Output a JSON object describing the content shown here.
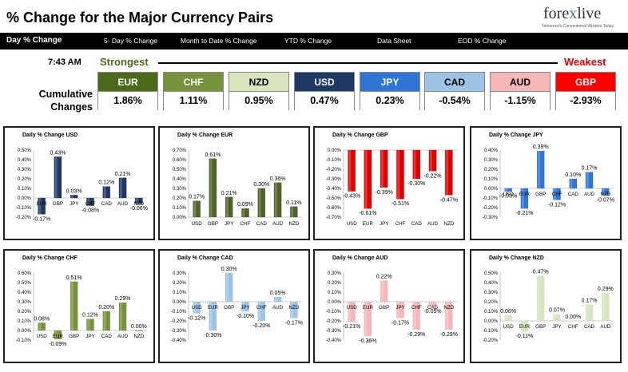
{
  "header": {
    "title": "% Change for the Major Currency Pairs",
    "logo_text_a": "fore",
    "logo_text_x": "x",
    "logo_text_b": "live",
    "logo_tagline": "Tomorrow's Conventional Wisdom Today"
  },
  "nav": {
    "items": [
      "Day % Change",
      "5- Day % Change",
      "Month to Date % Change",
      "YTD % Change",
      "Data Sheet",
      "EOD % Change"
    ]
  },
  "summary": {
    "time": "7:43 AM",
    "strongest_label": "Strongest",
    "weakest_label": "Weakest",
    "cumulative_label_1": "Cumulative",
    "cumulative_label_2": "Changes",
    "currencies": [
      {
        "code": "EUR",
        "value": "1.86%",
        "color": "#4a6a1a"
      },
      {
        "code": "CHF",
        "value": "1.11%",
        "color": "#76933c"
      },
      {
        "code": "NZD",
        "value": "0.95%",
        "color": "#d7e4bc"
      },
      {
        "code": "USD",
        "value": "0.47%",
        "color": "#1f3864"
      },
      {
        "code": "JPY",
        "value": "0.23%",
        "color": "#2e75d6"
      },
      {
        "code": "CAD",
        "value": "-0.54%",
        "color": "#9dc3e6"
      },
      {
        "code": "AUD",
        "value": "-1.15%",
        "color": "#f4b6b6"
      },
      {
        "code": "GBP",
        "value": "-2.93%",
        "color": "#ff0000"
      }
    ]
  },
  "chart_data": [
    {
      "type": "bar",
      "title": "Daily % Change USD",
      "categories": [
        "EUR",
        "GBP",
        "JPY",
        "CHF",
        "CAD",
        "AUD",
        "NZD"
      ],
      "values": [
        -0.17,
        0.43,
        0.03,
        -0.08,
        0.12,
        0.21,
        -0.06
      ],
      "ylim": [
        -0.2,
        0.5
      ],
      "yticks": [
        "-0.20%",
        "-0.10%",
        "0.00%",
        "0.10%",
        "0.20%",
        "0.30%",
        "0.40%",
        "0.50%"
      ],
      "color": "#1f3864"
    },
    {
      "type": "bar",
      "title": "Daily % Change EUR",
      "categories": [
        "USD",
        "GBP",
        "JPY",
        "CHF",
        "CAD",
        "AUD",
        "NZD"
      ],
      "values": [
        0.17,
        0.61,
        0.21,
        0.09,
        0.3,
        0.36,
        0.11
      ],
      "ylim": [
        0,
        0.7
      ],
      "yticks": [
        "0.00%",
        "0.10%",
        "0.20%",
        "0.30%",
        "0.40%",
        "0.50%",
        "0.60%",
        "0.70%"
      ],
      "color": "#4f6228"
    },
    {
      "type": "bar",
      "title": "Daily % Change GBP",
      "categories": [
        "USD",
        "EUR",
        "JPY",
        "CHF",
        "CAD",
        "AUD",
        "NZD"
      ],
      "values": [
        -0.43,
        -0.61,
        -0.39,
        -0.51,
        -0.3,
        -0.22,
        -0.47
      ],
      "ylim": [
        -0.7,
        0
      ],
      "yticks": [
        "-0.70%",
        "-0.60%",
        "-0.50%",
        "-0.40%",
        "-0.30%",
        "-0.20%",
        "-0.10%",
        "0.00%"
      ],
      "color": "#e00000"
    },
    {
      "type": "bar",
      "title": "Daily % Change JPY",
      "categories": [
        "USD",
        "EUR",
        "GBP",
        "CHF",
        "CAD",
        "AUD",
        "NZD"
      ],
      "values": [
        -0.03,
        -0.21,
        0.39,
        -0.12,
        0.1,
        0.17,
        -0.07
      ],
      "ylim": [
        -0.3,
        0.4
      ],
      "yticks": [
        "-0.30%",
        "-0.20%",
        "-0.10%",
        "0.00%",
        "0.10%",
        "0.20%",
        "0.30%",
        "0.40%"
      ],
      "color": "#2e75d6"
    },
    {
      "type": "bar",
      "title": "Daily % Change CHF",
      "categories": [
        "USD",
        "EUR",
        "GBP",
        "JPY",
        "CAD",
        "AUD",
        "NZD"
      ],
      "values": [
        0.08,
        -0.09,
        0.51,
        0.12,
        0.2,
        0.29,
        0.0
      ],
      "ylim": [
        -0.1,
        0.6
      ],
      "yticks": [
        "-0.10%",
        "0.00%",
        "0.10%",
        "0.20%",
        "0.30%",
        "0.40%",
        "0.50%",
        "0.60%"
      ],
      "color": "#76933c"
    },
    {
      "type": "bar",
      "title": "Daily % Change CAD",
      "categories": [
        "USD",
        "EUR",
        "GBP",
        "JPY",
        "CHF",
        "AUD",
        "NZD"
      ],
      "values": [
        -0.12,
        -0.3,
        0.3,
        -0.1,
        -0.2,
        0.05,
        -0.17
      ],
      "ylim": [
        -0.4,
        0.3
      ],
      "yticks": [
        "-0.40%",
        "-0.30%",
        "-0.20%",
        "-0.10%",
        "0.00%",
        "0.10%",
        "0.20%",
        "0.30%"
      ],
      "color": "#9dc3e6"
    },
    {
      "type": "bar",
      "title": "Daily % Change AUD",
      "categories": [
        "USD",
        "EUR",
        "GBP",
        "JPY",
        "CHF",
        "CAD",
        "NZD"
      ],
      "values": [
        -0.21,
        -0.36,
        0.22,
        -0.17,
        -0.29,
        -0.05,
        -0.29
      ],
      "ylim": [
        -0.4,
        0.3
      ],
      "yticks": [
        "-0.40%",
        "-0.30%",
        "-0.20%",
        "-0.10%",
        "0.00%",
        "0.10%",
        "0.20%",
        "0.30%"
      ],
      "color": "#f4b6b6"
    },
    {
      "type": "bar",
      "title": "Daily % Change NZD",
      "categories": [
        "USD",
        "EUR",
        "GBP",
        "JPY",
        "CHF",
        "CAD",
        "AUD"
      ],
      "values": [
        0.06,
        -0.11,
        0.47,
        0.07,
        0.0,
        0.17,
        0.29
      ],
      "ylim": [
        -0.2,
        0.5
      ],
      "yticks": [
        "-0.20%",
        "-0.10%",
        "0.00%",
        "0.10%",
        "0.20%",
        "0.30%",
        "0.40%",
        "0.50%"
      ],
      "color": "#d7e4bc"
    }
  ]
}
